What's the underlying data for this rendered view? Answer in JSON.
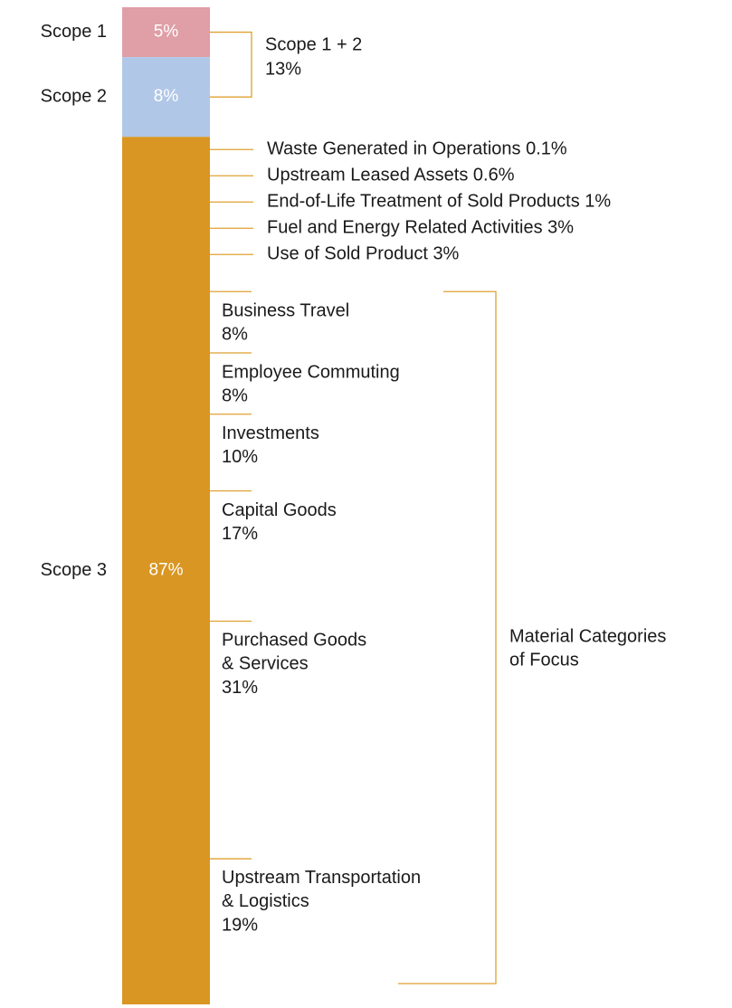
{
  "chart_data": {
    "type": "stacked-bar",
    "series": [
      {
        "name": "Scope 1",
        "color": "#e09ea6",
        "values": [
          5
        ],
        "value_labels": [
          "5%"
        ]
      },
      {
        "name": "Scope 2",
        "color": "#b1c7e7",
        "values": [
          8
        ],
        "value_labels": [
          "8%"
        ]
      },
      {
        "name": "Scope 3",
        "color": "#d99623",
        "values": [
          87
        ],
        "value_labels": [
          "87%"
        ]
      }
    ],
    "scope_1_2": {
      "label": "Scope 1 + 2",
      "value": 13,
      "value_label": "13%"
    },
    "minor_categories": {
      "categories": [
        "Waste Generated in Operations",
        "Upstream Leased Assets",
        "End-of-Life Treatment of Sold Products",
        "Fuel and Energy Related Activities",
        "Use of Sold Product"
      ],
      "values": [
        0.1,
        0.6,
        1,
        3,
        3
      ],
      "value_labels": [
        "0.1%",
        "0.6%",
        "1%",
        "3%",
        "3%"
      ]
    },
    "material_categories": {
      "label": "Material Categories\nof Focus",
      "categories": [
        "Business Travel",
        "Employee Commuting",
        "Investments",
        "Capital Goods",
        "Purchased Goods\n& Services",
        "Upstream Transportation\n& Logistics"
      ],
      "values": [
        8,
        8,
        10,
        17,
        31,
        19
      ],
      "value_labels": [
        "8%",
        "8%",
        "10%",
        "17%",
        "31%",
        "19%"
      ]
    }
  }
}
